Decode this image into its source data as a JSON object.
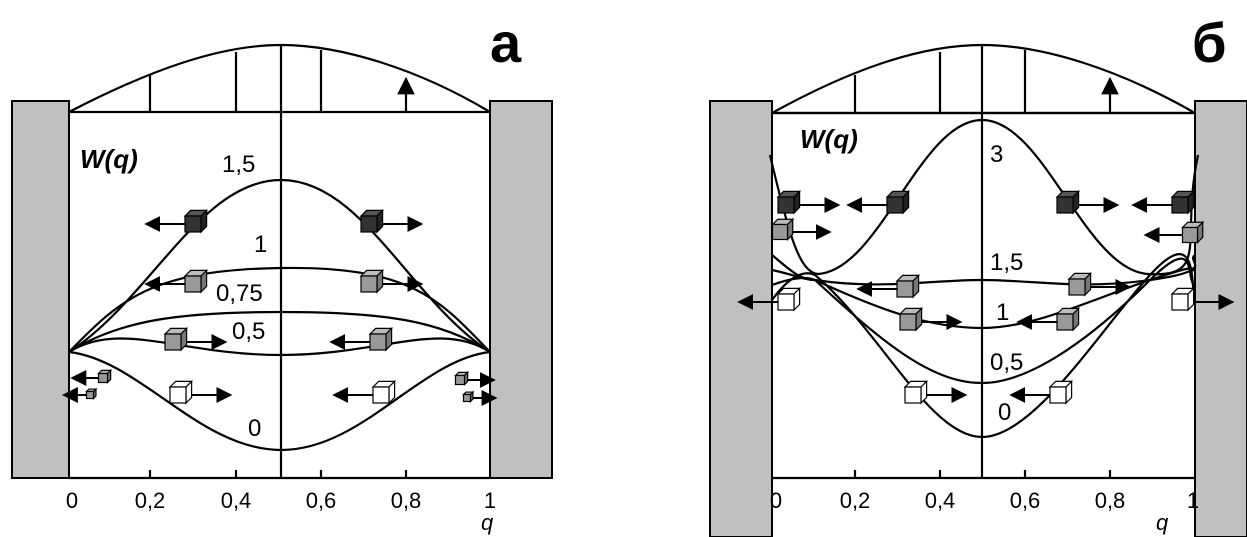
{
  "panels": [
    {
      "letter": "а",
      "y_label": "W(q)",
      "x_label": "q",
      "x_ticks": [
        "0",
        "0,2",
        "0,4",
        "0,6",
        "0,8",
        "1"
      ],
      "curve_labels": [
        "1,5",
        "1",
        "0,75",
        "0,5",
        "0"
      ]
    },
    {
      "letter": "б",
      "y_label": "W(q)",
      "x_label": "q",
      "x_ticks": [
        "0",
        "0,2",
        "0,4",
        "0,6",
        "0,8",
        "1"
      ],
      "curve_labels": [
        "3",
        "1,5",
        "1",
        "0,5",
        "0"
      ]
    }
  ]
}
